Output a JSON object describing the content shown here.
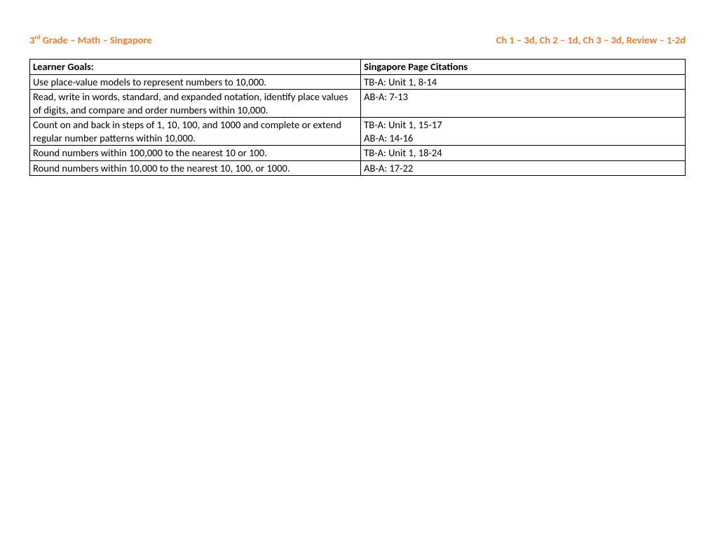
{
  "header": {
    "left_prefix": "3",
    "left_ord": "rd",
    "left_rest": " Grade – Math – Singapore",
    "right": "Ch 1 – 3d, Ch 2 – 1d, Ch 3 – 3d, Review – 1-2d"
  },
  "table": {
    "columns": [
      "Learner Goals:",
      "Singapore Page Citations"
    ],
    "rows": [
      [
        "Use place-value models to represent numbers to 10,000.",
        "TB-A: Unit 1, 8-14"
      ],
      [
        "Read, write in words, standard, and expanded notation, identify place values of digits, and compare and order numbers within 10,000.",
        "AB-A: 7-13"
      ],
      [
        "Count on and back in steps of 1, 10, 100, and 1000 and complete or extend regular number patterns within 10,000.",
        "TB-A: Unit 1, 15-17\nAB-A: 14-16"
      ],
      [
        "Round numbers within 100,000 to the nearest 10 or 100.",
        "TB-A: Unit 1, 18-24"
      ],
      [
        "Round numbers within 10,000 to the nearest 10, 100, or 1000.",
        "AB-A: 17-22"
      ]
    ]
  },
  "colors": {
    "header_text": "#ed7d31",
    "body_text": "#000000",
    "border": "#000000",
    "background": "#ffffff"
  }
}
